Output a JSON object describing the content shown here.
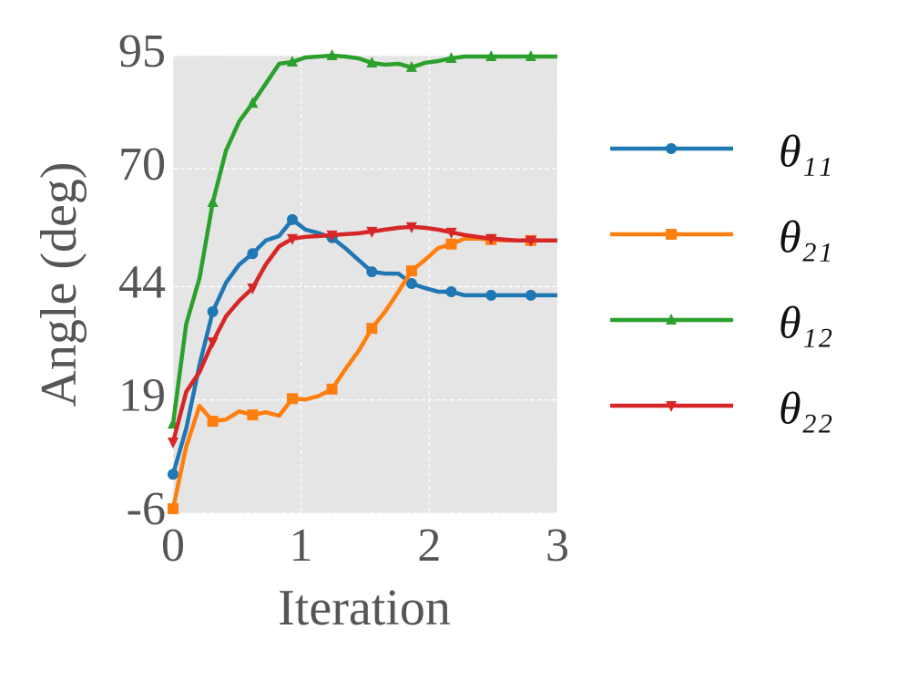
{
  "chart_data": {
    "type": "line",
    "xlabel": "Iteration",
    "ylabel": "Angle (deg)",
    "x": [
      0,
      0.103,
      0.207,
      0.31,
      0.414,
      0.517,
      0.621,
      0.724,
      0.828,
      0.931,
      1.034,
      1.138,
      1.241,
      1.345,
      1.448,
      1.552,
      1.655,
      1.759,
      1.862,
      1.966,
      2.069,
      2.172,
      2.276,
      2.379,
      2.483,
      2.586,
      2.69,
      2.793,
      2.897,
      3.0
    ],
    "xlim": [
      0,
      3
    ],
    "xticks": [
      0,
      1,
      2,
      3
    ],
    "ylim": [
      -6,
      95
    ],
    "yticks": [
      -6,
      19,
      44,
      70,
      95
    ],
    "grid": true,
    "markevery": 3,
    "legend": "right",
    "series": [
      {
        "name": "θ₁₁",
        "color": "#1f77b4",
        "marker": "circle",
        "values": [
          2.6,
          12.7,
          26.8,
          38.5,
          44.9,
          48.9,
          51.3,
          54.2,
          55.2,
          58.8,
          56.6,
          55.8,
          54.8,
          52.5,
          49.9,
          47.3,
          46.9,
          46.9,
          44.7,
          43.7,
          42.9,
          42.9,
          42.1,
          42.1,
          42.1,
          42.1,
          42.1,
          42.1,
          42.1,
          42.1
        ]
      },
      {
        "name": "θ₂₁",
        "color": "#ff7f0e",
        "marker": "square",
        "values": [
          -5.0,
          8.7,
          17.7,
          14.3,
          14.7,
          16.5,
          15.7,
          16.3,
          15.5,
          19.3,
          19.1,
          19.9,
          21.4,
          25.8,
          29.8,
          34.8,
          38.5,
          42.9,
          47.5,
          49.9,
          52.5,
          53.4,
          54.6,
          54.6,
          54.4,
          54.2,
          54.2,
          54.2,
          54.2,
          54.2
        ]
      },
      {
        "name": "θ₁₂",
        "color": "#2ca02c",
        "marker": "triangle-up",
        "values": [
          13.7,
          35.8,
          45.9,
          62.6,
          74.1,
          80.5,
          84.5,
          88.8,
          93.2,
          93.6,
          94.6,
          94.8,
          95.0,
          94.8,
          94.4,
          93.4,
          93.0,
          93.2,
          92.4,
          93.4,
          93.8,
          94.4,
          94.8,
          94.8,
          94.8,
          94.8,
          94.8,
          94.8,
          94.8,
          94.8
        ]
      },
      {
        "name": "θ₂₂",
        "color": "#d62728",
        "marker": "triangle-down",
        "values": [
          9.7,
          20.8,
          25.2,
          31.8,
          37.5,
          40.9,
          43.7,
          48.9,
          52.9,
          54.6,
          55.0,
          55.2,
          55.4,
          55.6,
          55.8,
          56.2,
          56.6,
          57.0,
          57.2,
          57.0,
          56.6,
          56.0,
          55.4,
          55.0,
          54.6,
          54.4,
          54.2,
          54.2,
          54.2,
          54.2
        ]
      }
    ]
  }
}
